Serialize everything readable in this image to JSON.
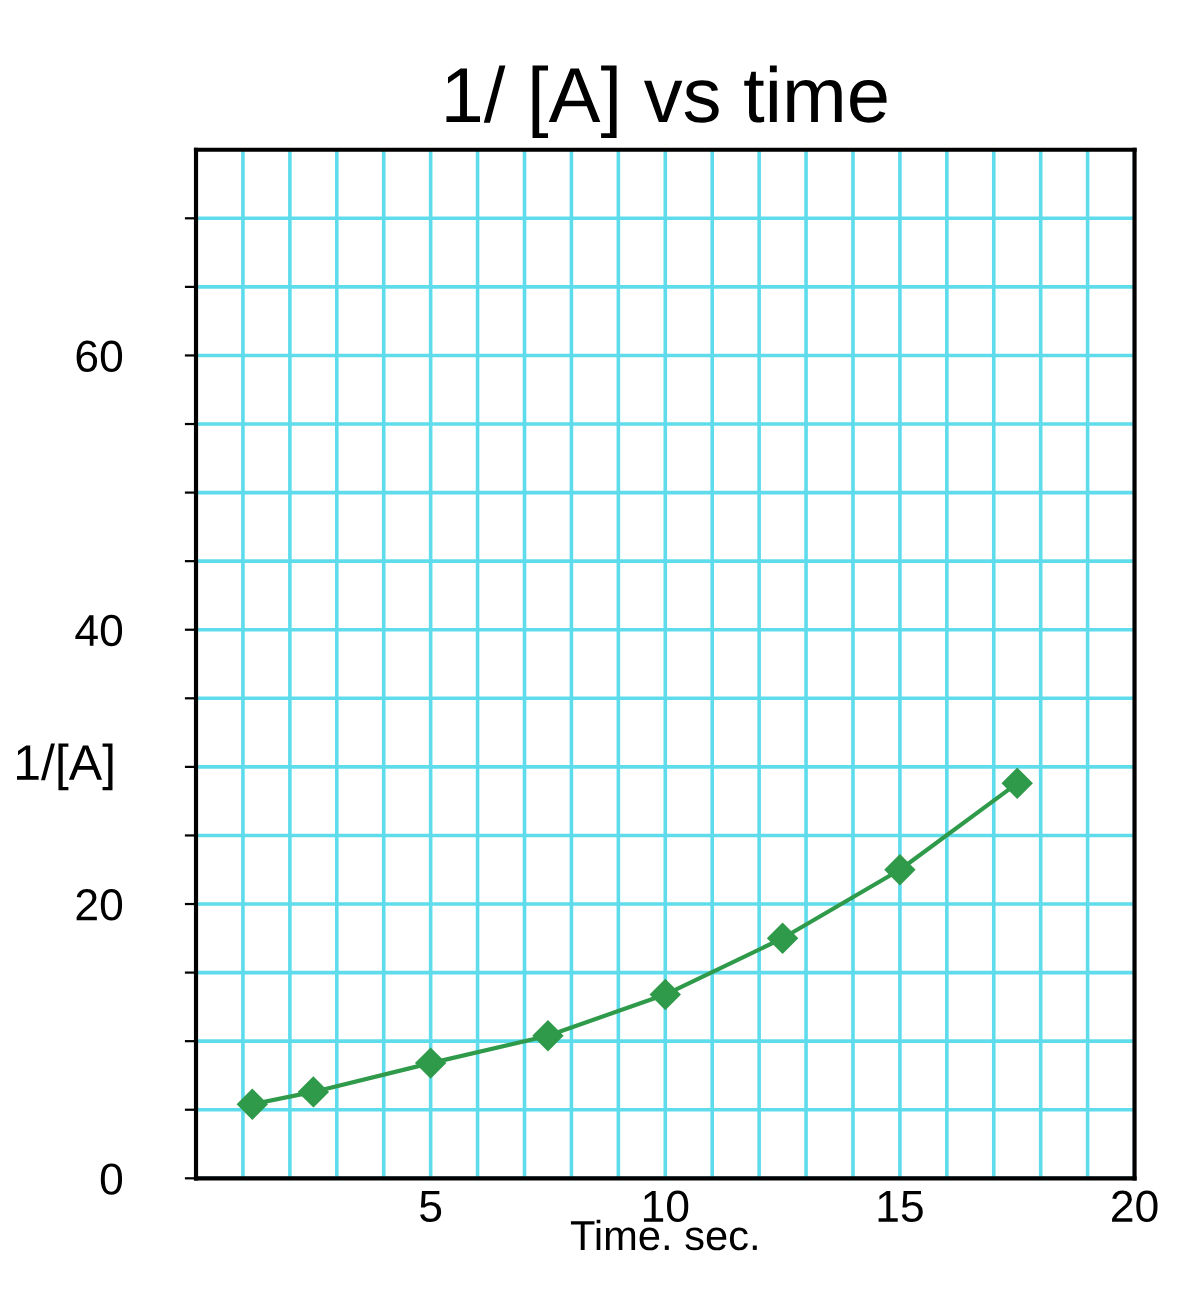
{
  "chart_data": {
    "type": "line",
    "title": "1/ [A] vs time",
    "xlabel": "Time. sec.",
    "ylabel": "1/[A]",
    "x": [
      1.2,
      2.5,
      5,
      7.5,
      10,
      12.5,
      15,
      17.5
    ],
    "series": [
      {
        "color": "#2e9a4a",
        "values": [
          5.4,
          6.3,
          8.4,
          10.4,
          13.4,
          17.5,
          22.5,
          28.8
        ]
      }
    ],
    "marker": "diamond",
    "line_style": "solid",
    "grid": true,
    "legend": false,
    "xlim": [
      0,
      20
    ],
    "ylim": [
      0,
      75
    ],
    "xticks": [
      {
        "value": 1,
        "label": null
      },
      {
        "value": 2,
        "label": null
      },
      {
        "value": 3,
        "label": null
      },
      {
        "value": 4,
        "label": null
      },
      5,
      {
        "value": 6,
        "label": null
      },
      {
        "value": 7,
        "label": null
      },
      {
        "value": 8,
        "label": null
      },
      {
        "value": 9,
        "label": null
      },
      10,
      {
        "value": 11,
        "label": null
      },
      {
        "value": 12,
        "label": null
      },
      {
        "value": 13,
        "label": null
      },
      {
        "value": 14,
        "label": null
      },
      15,
      {
        "value": 16,
        "label": null
      },
      {
        "value": 17,
        "label": null
      },
      {
        "value": 18,
        "label": null
      },
      {
        "value": 19,
        "label": null
      },
      20
    ],
    "yticks": [
      0,
      {
        "value": 5,
        "label": null
      },
      {
        "value": 10,
        "label": null
      },
      {
        "value": 15,
        "label": null
      },
      20,
      {
        "value": 25,
        "label": null
      },
      {
        "value": 30,
        "label": null
      },
      {
        "value": 35,
        "label": null
      },
      40,
      {
        "value": 45,
        "label": null
      },
      {
        "value": 50,
        "label": null
      },
      {
        "value": 55,
        "label": null
      },
      60,
      {
        "value": 65,
        "label": null
      },
      {
        "value": 70,
        "label": null
      }
    ]
  }
}
